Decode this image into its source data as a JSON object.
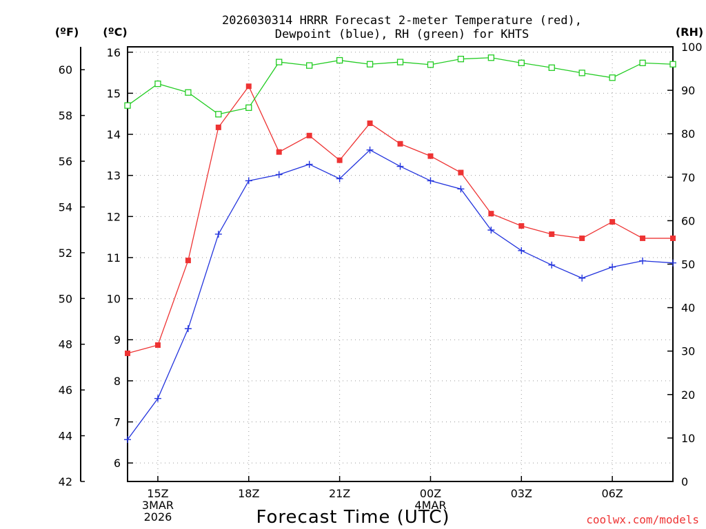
{
  "chart_data": {
    "type": "line",
    "title_lines": [
      "2026030314 HRRR Forecast 2-meter Temperature (red),",
      "Dewpoint (blue), RH (green) for KHTS"
    ],
    "xlabel": "Forecast Time (UTC)",
    "credit": "coolwx.com/models",
    "units": {
      "fahrenheit": "(ºF)",
      "celsius": "(ºC)",
      "rh": "(RH)"
    },
    "x": [
      14,
      15,
      16,
      17,
      18,
      19,
      20,
      21,
      22,
      23,
      24,
      25,
      26,
      27,
      28,
      29,
      30,
      31,
      32
    ],
    "xlim": [
      14,
      32
    ],
    "x_ticks": [
      {
        "x": 15,
        "lines": [
          "15Z",
          "3MAR",
          "2026"
        ]
      },
      {
        "x": 18,
        "lines": [
          "18Z"
        ]
      },
      {
        "x": 21,
        "lines": [
          "21Z"
        ]
      },
      {
        "x": 24,
        "lines": [
          "00Z",
          "4MAR"
        ]
      },
      {
        "x": 27,
        "lines": [
          "03Z"
        ]
      },
      {
        "x": 30,
        "lines": [
          "06Z"
        ]
      }
    ],
    "y_left_c": {
      "ylim": [
        5.55,
        16.13
      ],
      "ticks": [
        6,
        7,
        8,
        9,
        10,
        11,
        12,
        13,
        14,
        15,
        16
      ]
    },
    "y_left_f": {
      "ylim": [
        42,
        61
      ],
      "ticks": [
        42,
        44,
        46,
        48,
        50,
        52,
        54,
        56,
        58,
        60
      ]
    },
    "y_right_rh": {
      "ylim": [
        0,
        100
      ],
      "ticks": [
        0,
        10,
        20,
        30,
        40,
        50,
        60,
        70,
        80,
        90,
        100
      ]
    },
    "series": [
      {
        "name": "Temperature",
        "axis": "c",
        "color": "#ee3333",
        "marker": "filled-square",
        "values": [
          8.67,
          8.87,
          10.93,
          14.17,
          15.17,
          13.57,
          13.97,
          13.37,
          14.27,
          13.77,
          13.47,
          13.07,
          12.07,
          11.77,
          11.57,
          11.47,
          11.87,
          11.47,
          11.47
        ]
      },
      {
        "name": "Dewpoint",
        "axis": "c",
        "color": "#2233dd",
        "marker": "plus",
        "values": [
          6.57,
          7.57,
          9.27,
          11.57,
          12.87,
          13.02,
          13.27,
          12.92,
          13.62,
          13.22,
          12.87,
          12.67,
          11.67,
          11.17,
          10.82,
          10.5,
          10.77,
          10.92,
          10.87
        ]
      },
      {
        "name": "RH",
        "axis": "rh",
        "color": "#22cc22",
        "marker": "open-square",
        "values": [
          86.5,
          91.5,
          89.5,
          84.5,
          86,
          96.5,
          95.7,
          96.9,
          96,
          96.5,
          95.9,
          97.2,
          97.5,
          96.3,
          95.2,
          94,
          92.9,
          96.3,
          96
        ]
      }
    ],
    "grid": true
  }
}
